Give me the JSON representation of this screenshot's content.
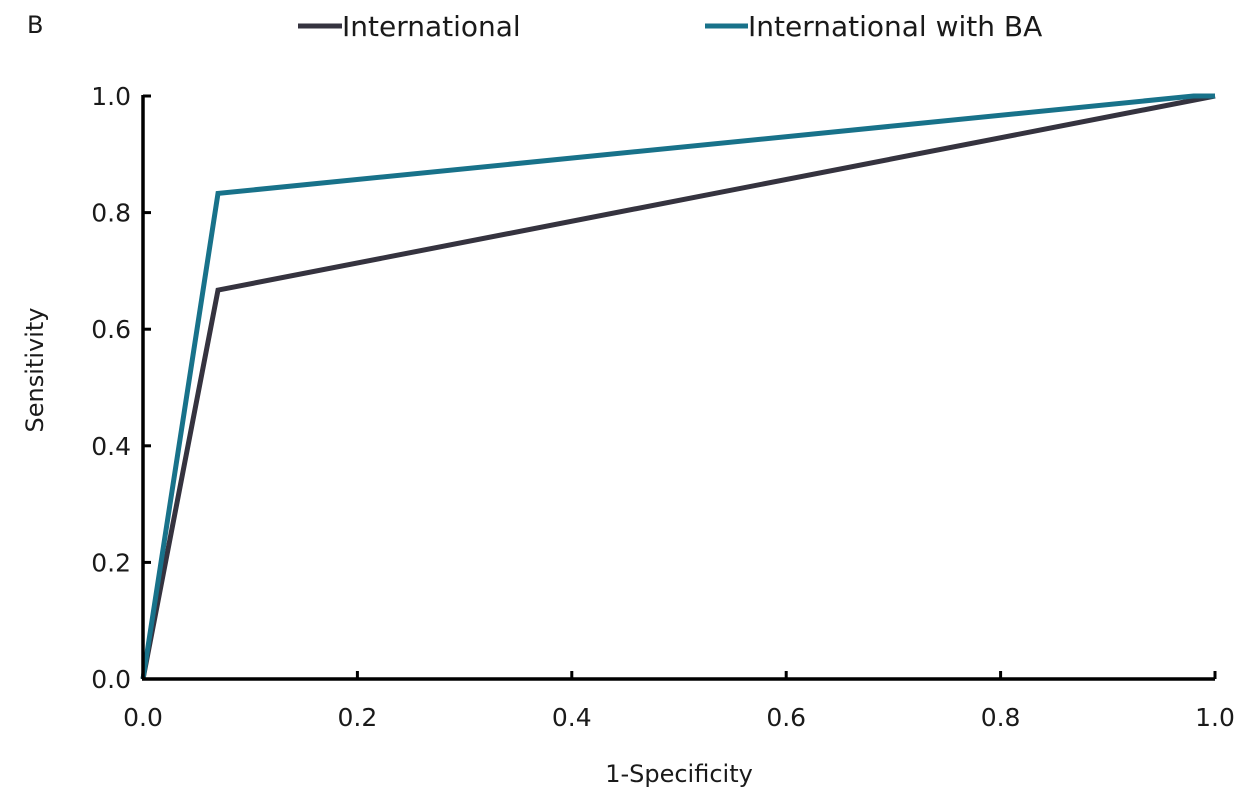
{
  "panel_label": "B",
  "colors": {
    "international": "#35333f",
    "international_with_ba": "#18728a",
    "axis": "#000000"
  },
  "chart_data": {
    "type": "line",
    "title": "",
    "xlabel": "1-Specificity",
    "ylabel": "Sensitivity",
    "xlim": [
      0,
      1
    ],
    "ylim": [
      0,
      1
    ],
    "xticks": [
      "0.0",
      "0.2",
      "0.4",
      "0.6",
      "0.8",
      "1.0"
    ],
    "yticks": [
      "0.0",
      "0.2",
      "0.4",
      "0.6",
      "0.8",
      "1.0"
    ],
    "grid": false,
    "legend_position": "top",
    "series": [
      {
        "name": "International",
        "color": "#35333f",
        "x": [
          0.0,
          0.07,
          1.0
        ],
        "y": [
          0.0,
          0.667,
          1.0
        ]
      },
      {
        "name": "International with BA",
        "color": "#18728a",
        "x": [
          0.0,
          0.07,
          0.98,
          1.0
        ],
        "y": [
          0.0,
          0.833,
          1.0,
          1.0
        ]
      }
    ]
  }
}
